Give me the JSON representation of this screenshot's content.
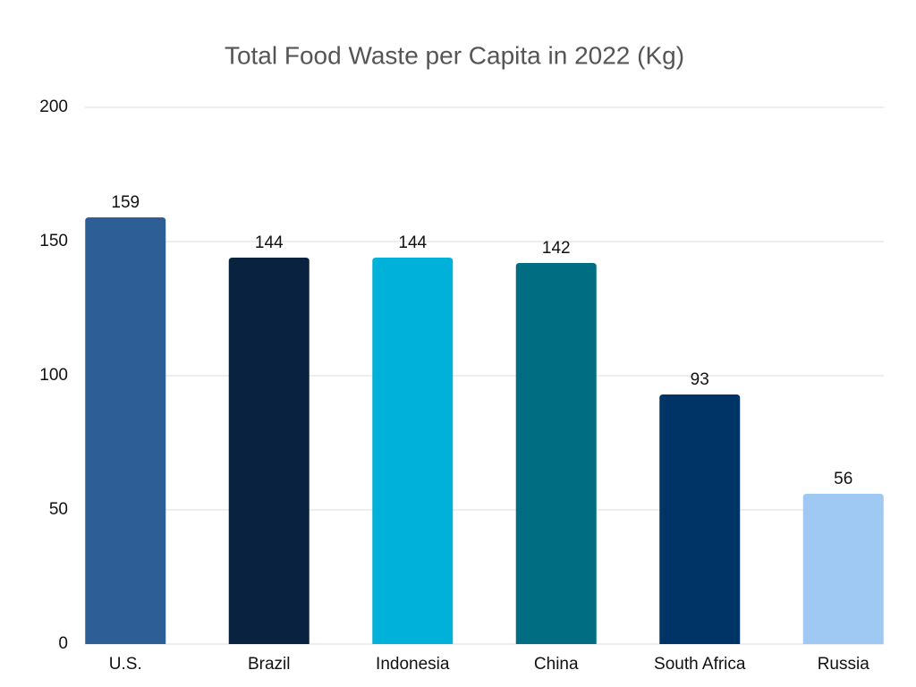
{
  "chart_data": {
    "type": "bar",
    "title": "Total Food Waste per Capita in 2022 (Kg)",
    "categories": [
      "U.S.",
      "Brazil",
      "Indonesia",
      "China",
      "South Africa",
      "Russia"
    ],
    "values": [
      159,
      144,
      144,
      142,
      93,
      56
    ],
    "colors": [
      "#2e5e96",
      "#08223f",
      "#00b2d9",
      "#006d82",
      "#003366",
      "#9fc8f3"
    ],
    "ylim": [
      0,
      200
    ],
    "yticks": [
      0,
      50,
      100,
      150,
      200
    ],
    "grid": true,
    "data_labels": true
  }
}
